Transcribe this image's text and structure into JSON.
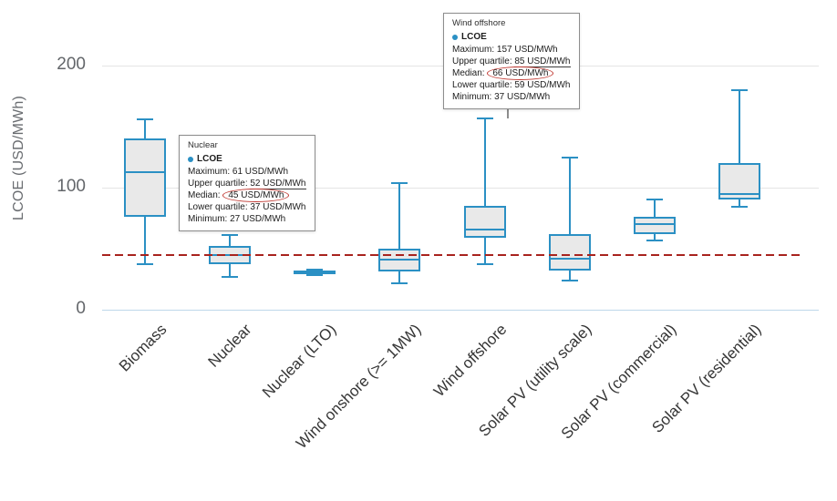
{
  "chart_data": {
    "type": "boxplot",
    "title": "",
    "ylabel": "LCOE (USD/MWh)",
    "ylim": [
      0,
      220
    ],
    "yticks": [
      0,
      100,
      200
    ],
    "grid": "horizontal",
    "legend": "none",
    "reference_line": {
      "value": 45,
      "style": "dashed",
      "color": "#a8231e"
    },
    "categories": [
      "Biomass",
      "Nuclear",
      "Nuclear (LTO)",
      "Wind onshore (>= 1MW)",
      "Wind offshore",
      "Solar PV (utility scale)",
      "Solar PV (commercial)",
      "Solar PV (residential)"
    ],
    "series": [
      {
        "name": "LCOE",
        "unit": "USD/MWh",
        "boxes": [
          {
            "min": 37,
            "q1": 76,
            "median": 113,
            "q3": 140,
            "max": 156
          },
          {
            "min": 27,
            "q1": 37,
            "median": 45,
            "q3": 52,
            "max": 61
          },
          {
            "min": 28,
            "q1": 29,
            "median": 30,
            "q3": 32,
            "max": 33
          },
          {
            "min": 22,
            "q1": 31,
            "median": 41,
            "q3": 50,
            "max": 104
          },
          {
            "min": 37,
            "q1": 59,
            "median": 66,
            "q3": 85,
            "max": 157
          },
          {
            "min": 24,
            "q1": 32,
            "median": 42,
            "q3": 62,
            "max": 125
          },
          {
            "min": 57,
            "q1": 62,
            "median": 70,
            "q3": 76,
            "max": 90
          },
          {
            "min": 84,
            "q1": 90,
            "median": 95,
            "q3": 120,
            "max": 180
          }
        ]
      }
    ],
    "colors": {
      "box_fill": "#e9e9e9",
      "box_stroke": "#2b90c4",
      "gridline": "#e4e4e4",
      "axis_line": "#bed8ea",
      "reference": "#a8231e",
      "tick_text": "#63666a",
      "category_text": "#363636"
    }
  },
  "tooltips": [
    {
      "title": "Nuclear",
      "series_label": "LCOE",
      "rows": [
        {
          "label": "Maximum:",
          "value": "61 USD/MWh"
        },
        {
          "label": "Upper quartile:",
          "value": "52 USD/MWh"
        },
        {
          "label": "Median:",
          "value": "45 USD/MWh"
        },
        {
          "label": "Lower quartile:",
          "value": "37 USD/MWh"
        },
        {
          "label": "Minimum:",
          "value": "27 USD/MWh"
        }
      ]
    },
    {
      "title": "Wind offshore",
      "series_label": "LCOE",
      "rows": [
        {
          "label": "Maximum:",
          "value": "157 USD/MWh"
        },
        {
          "label": "Upper quartile:",
          "value": "85 USD/MWh"
        },
        {
          "label": "Median:",
          "value": "66 USD/MWh"
        },
        {
          "label": "Lower quartile:",
          "value": "59 USD/MWh"
        },
        {
          "label": "Minimum:",
          "value": "37 USD/MWh"
        }
      ]
    }
  ]
}
